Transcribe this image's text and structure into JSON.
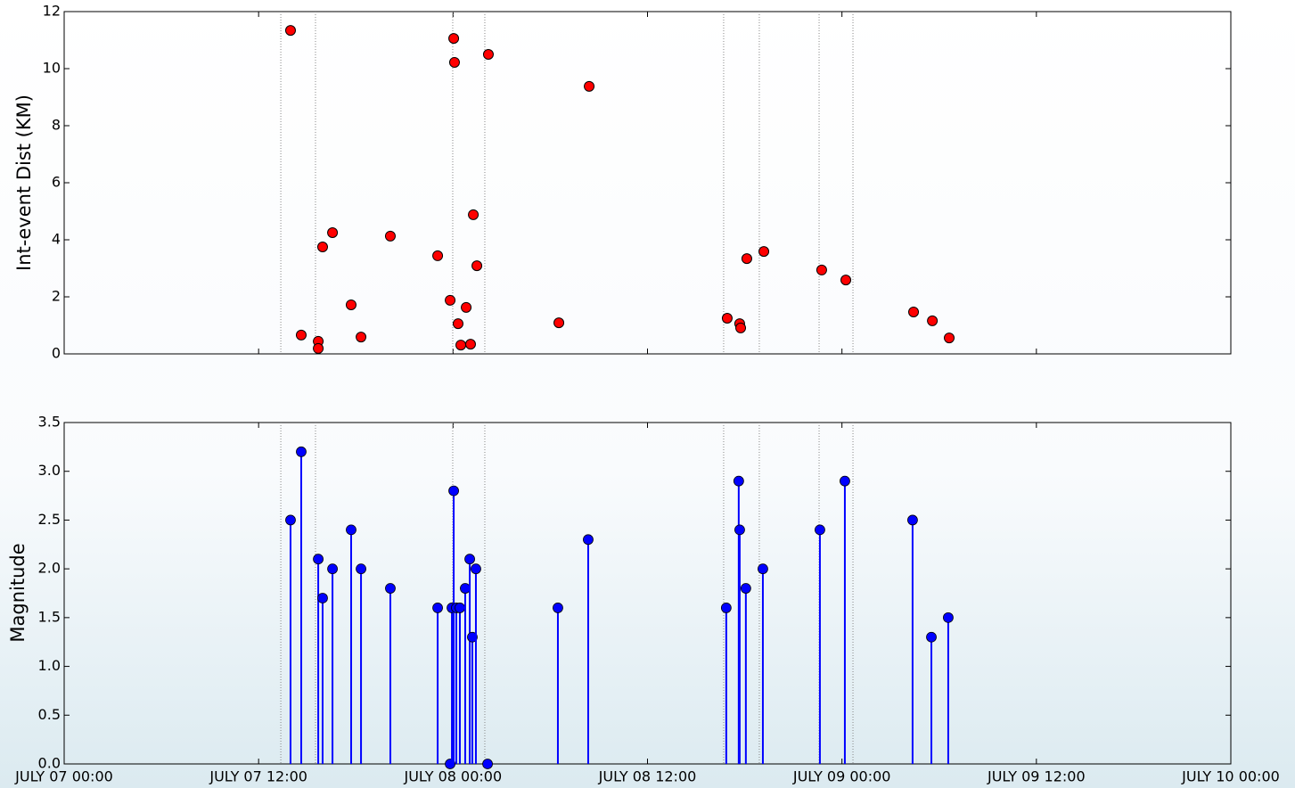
{
  "chart_data": [
    {
      "type": "scatter",
      "ylabel": "Int-event Dist (KM)",
      "color": "#ff0000",
      "xlim": [
        0,
        72
      ],
      "ylim": [
        0,
        12
      ],
      "yticks": [
        0,
        2,
        4,
        6,
        8,
        10,
        12
      ],
      "vlines": [
        13.37,
        15.51,
        23.98,
        25.96,
        40.7,
        42.9,
        46.59,
        48.68
      ],
      "x": [
        13.97,
        14.63,
        15.68,
        15.68,
        15.95,
        16.56,
        17.71,
        18.32,
        20.13,
        23.05,
        23.82,
        24.04,
        24.09,
        24.31,
        24.48,
        24.81,
        25.08,
        25.25,
        25.47,
        26.18,
        30.53,
        32.4,
        40.92,
        41.69,
        41.75,
        42.13,
        43.18,
        46.75,
        48.24,
        52.42,
        53.58,
        54.62
      ],
      "values": [
        11.34,
        0.66,
        0.44,
        0.19,
        3.75,
        4.25,
        1.72,
        0.59,
        4.13,
        3.44,
        1.88,
        11.06,
        10.22,
        1.06,
        0.31,
        1.63,
        0.34,
        4.88,
        3.09,
        10.5,
        1.09,
        9.38,
        1.25,
        1.06,
        0.91,
        3.34,
        3.59,
        2.94,
        2.59,
        1.47,
        1.16,
        0.56
      ]
    },
    {
      "type": "stem",
      "ylabel": "Magnitude",
      "color": "#0000ff",
      "xlim": [
        0,
        72
      ],
      "xticks": [
        {
          "value": 0,
          "label": "JULY 07 00:00"
        },
        {
          "value": 12,
          "label": "JULY 07 12:00"
        },
        {
          "value": 24,
          "label": "JULY 08 00:00"
        },
        {
          "value": 36,
          "label": "JULY 08 12:00"
        },
        {
          "value": 48,
          "label": "JULY 09 00:00"
        },
        {
          "value": 60,
          "label": "JULY 09 12:00"
        },
        {
          "value": 72,
          "label": "JULY 10 00:00"
        }
      ],
      "ylim": [
        0,
        3.5
      ],
      "yticks": [
        {
          "value": 0,
          "label": "0.0"
        },
        0.5,
        {
          "value": 1,
          "label": "1.0"
        },
        1.5,
        {
          "value": 2,
          "label": "2.0"
        },
        2.5,
        {
          "value": 3,
          "label": "3.0"
        },
        3.5
      ],
      "x": [
        13.97,
        14.63,
        15.68,
        15.95,
        16.56,
        17.71,
        18.32,
        20.13,
        23.05,
        23.82,
        23.93,
        24.04,
        24.2,
        24.42,
        24.75,
        25.03,
        25.19,
        25.41,
        26.13,
        30.47,
        32.34,
        40.86,
        41.63,
        41.69,
        42.07,
        43.12,
        46.64,
        48.18,
        52.36,
        53.52,
        54.56
      ],
      "values": [
        2.5,
        3.2,
        2.1,
        1.7,
        2.0,
        2.4,
        2.0,
        1.8,
        1.6,
        0.0,
        1.6,
        2.8,
        1.6,
        1.6,
        1.8,
        2.1,
        1.3,
        2.0,
        0.0,
        1.6,
        2.3,
        1.6,
        2.9,
        2.4,
        1.8,
        2.0,
        2.4,
        2.9,
        2.5,
        1.3,
        1.5
      ]
    }
  ]
}
